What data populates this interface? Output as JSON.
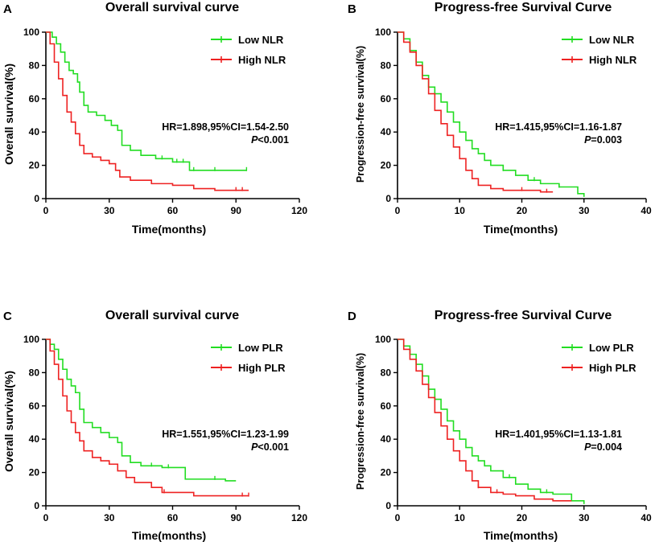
{
  "chart_data": [
    {
      "type": "line",
      "panel": "A",
      "title": "Overall survival curve",
      "xlabel": "Time(months)",
      "ylabel": "Overall survival(%)",
      "xlim": [
        0,
        120
      ],
      "ylim": [
        0,
        100
      ],
      "xticks": [
        "0",
        "30",
        "60",
        "90",
        "120"
      ],
      "yticks": [
        "0",
        "20",
        "40",
        "60",
        "80",
        "100"
      ],
      "series": [
        {
          "name": "Low NLR",
          "color": "#22dd22",
          "x": [
            0,
            3,
            5,
            7,
            9,
            11,
            13,
            15,
            16,
            18,
            20,
            24,
            28,
            31,
            34,
            36,
            40,
            45,
            52,
            60,
            68,
            75,
            85,
            95
          ],
          "y": [
            100,
            97,
            93,
            88,
            82,
            77,
            75,
            70,
            64,
            56,
            52,
            50,
            47,
            44,
            41,
            32,
            29,
            26,
            24,
            22,
            17,
            17,
            17,
            17
          ],
          "censor_x": [
            55,
            62,
            65,
            70,
            80,
            95
          ]
        },
        {
          "name": "High NLR",
          "color": "#ee2222",
          "x": [
            0,
            2,
            4,
            6,
            8,
            10,
            12,
            14,
            16,
            18,
            22,
            26,
            30,
            33,
            35,
            40,
            50,
            60,
            70,
            80,
            96
          ],
          "y": [
            100,
            93,
            82,
            72,
            62,
            52,
            46,
            39,
            32,
            27,
            25,
            23,
            21,
            17,
            13,
            11,
            9,
            8,
            6,
            5,
            5
          ],
          "censor_x": [
            90,
            93
          ]
        }
      ],
      "legend": {
        "position": "top-right",
        "entries": [
          "Low NLR",
          "High NLR"
        ]
      },
      "annotations": {
        "hr": "HR=1.898,95%CI=1.54-2.50",
        "p_letter": "P",
        "p_value": "<0.001"
      }
    },
    {
      "type": "line",
      "panel": "B",
      "title": "Progress-free Survival Curve",
      "xlabel": "Time(months)",
      "ylabel": "Progression-free survival(%)",
      "xlim": [
        0,
        40
      ],
      "ylim": [
        0,
        100
      ],
      "xticks": [
        "0",
        "10",
        "20",
        "30",
        "40"
      ],
      "yticks": [
        "0",
        "20",
        "40",
        "60",
        "80",
        "100"
      ],
      "series": [
        {
          "name": "Low NLR",
          "color": "#22dd22",
          "x": [
            0,
            1,
            2,
            3,
            4,
            5,
            6,
            7,
            8,
            9,
            10,
            11,
            12,
            13,
            14,
            15,
            17,
            19,
            21,
            23,
            26,
            28,
            29,
            30
          ],
          "y": [
            100,
            96,
            89,
            82,
            74,
            67,
            63,
            58,
            52,
            46,
            40,
            35,
            30,
            27,
            23,
            20,
            17,
            14,
            11,
            9,
            7,
            7,
            3,
            1
          ],
          "censor_x": [
            17,
            22,
            26
          ]
        },
        {
          "name": "High NLR",
          "color": "#ee2222",
          "x": [
            0,
            1,
            2,
            3,
            4,
            5,
            6,
            7,
            8,
            9,
            10,
            11,
            12,
            13,
            15,
            17,
            20,
            23,
            25
          ],
          "y": [
            100,
            94,
            88,
            80,
            72,
            63,
            53,
            45,
            38,
            31,
            24,
            17,
            12,
            8,
            6,
            5,
            5,
            4,
            4
          ],
          "censor_x": [
            20,
            24
          ]
        }
      ],
      "legend": {
        "position": "top-right",
        "entries": [
          "Low NLR",
          "High NLR"
        ]
      },
      "annotations": {
        "hr": "HR=1.415,95%CI=1.16-1.87",
        "p_letter": "P",
        "p_value": "=0.003"
      }
    },
    {
      "type": "line",
      "panel": "C",
      "title": "Overall survival curve",
      "xlabel": "Time(months)",
      "ylabel": "Overall survival(%)",
      "xlim": [
        0,
        120
      ],
      "ylim": [
        0,
        100
      ],
      "xticks": [
        "0",
        "30",
        "60",
        "90",
        "120"
      ],
      "yticks": [
        "0",
        "20",
        "40",
        "60",
        "80",
        "100"
      ],
      "series": [
        {
          "name": "Low PLR",
          "color": "#22dd22",
          "x": [
            0,
            2,
            4,
            6,
            8,
            10,
            12,
            14,
            16,
            18,
            22,
            26,
            30,
            34,
            36,
            40,
            45,
            55,
            60,
            66,
            75,
            85,
            90
          ],
          "y": [
            100,
            97,
            94,
            88,
            82,
            76,
            72,
            68,
            58,
            50,
            47,
            44,
            41,
            38,
            30,
            26,
            24,
            23,
            23,
            16,
            16,
            15,
            15
          ],
          "censor_x": [
            50,
            58,
            80
          ]
        },
        {
          "name": "High PLR",
          "color": "#ee2222",
          "x": [
            0,
            2,
            4,
            6,
            8,
            10,
            12,
            14,
            16,
            18,
            22,
            26,
            30,
            34,
            38,
            42,
            50,
            55,
            60,
            70,
            96
          ],
          "y": [
            100,
            93,
            85,
            76,
            66,
            57,
            50,
            44,
            39,
            33,
            29,
            27,
            25,
            21,
            17,
            14,
            11,
            8,
            8,
            6,
            6
          ],
          "censor_x": [
            56,
            93,
            96
          ]
        }
      ],
      "legend": {
        "position": "top-right",
        "entries": [
          "Low PLR",
          "High PLR"
        ]
      },
      "annotations": {
        "hr": "HR=1.551,95%CI=1.23-1.99",
        "p_letter": "P",
        "p_value": "<0.001"
      }
    },
    {
      "type": "line",
      "panel": "D",
      "title": "Progress-free Survival Curve",
      "xlabel": "Time(months)",
      "ylabel": "Progression-free survival(%)",
      "xlim": [
        0,
        40
      ],
      "ylim": [
        0,
        100
      ],
      "xticks": [
        "0",
        "10",
        "20",
        "30",
        "40"
      ],
      "yticks": [
        "0",
        "20",
        "40",
        "60",
        "80",
        "100"
      ],
      "series": [
        {
          "name": "Low PLR",
          "color": "#22dd22",
          "x": [
            0,
            1,
            2,
            3,
            4,
            5,
            6,
            7,
            8,
            9,
            10,
            11,
            12,
            13,
            14,
            15,
            17,
            19,
            21,
            23,
            25,
            27,
            28,
            30
          ],
          "y": [
            100,
            96,
            91,
            85,
            78,
            70,
            64,
            58,
            51,
            45,
            40,
            35,
            30,
            27,
            24,
            21,
            17,
            13,
            10,
            8,
            7,
            7,
            3,
            1
          ],
          "censor_x": [
            18,
            24
          ]
        },
        {
          "name": "High PLR",
          "color": "#ee2222",
          "x": [
            0,
            1,
            2,
            3,
            4,
            5,
            6,
            7,
            8,
            9,
            10,
            11,
            12,
            13,
            15,
            17,
            19,
            22,
            25,
            28
          ],
          "y": [
            100,
            94,
            88,
            81,
            73,
            65,
            56,
            48,
            40,
            33,
            27,
            21,
            15,
            11,
            8,
            7,
            6,
            4,
            3,
            3
          ],
          "censor_x": [
            13,
            16
          ]
        }
      ],
      "legend": {
        "position": "top-right",
        "entries": [
          "Low PLR",
          "High PLR"
        ]
      },
      "annotations": {
        "hr": "HR=1.401,95%CI=1.13-1.81",
        "p_letter": "P",
        "p_value": "=0.004"
      }
    }
  ]
}
